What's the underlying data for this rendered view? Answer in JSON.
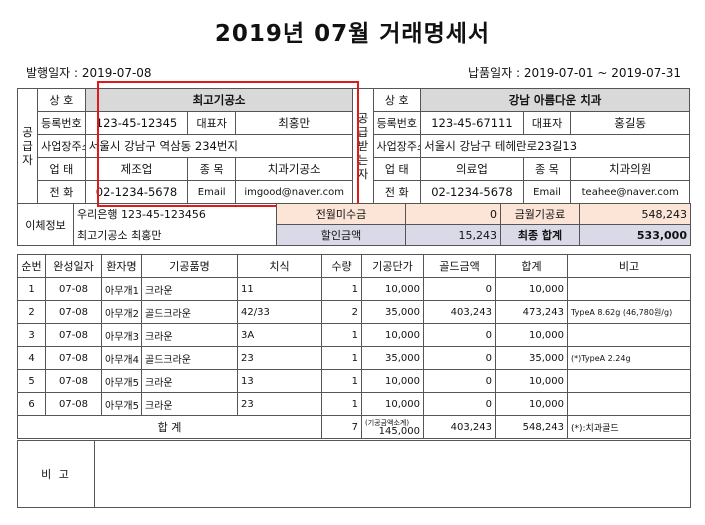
{
  "title": "2019년 07월  거래명세서",
  "issue_date": "발행일자 : 2019-07-08",
  "delivery_period": "납품일자 : 2019-07-01 ~  2019-07-31",
  "supplier": {
    "section_label": "공급자",
    "name_label": "상 호",
    "name": "최고기공소",
    "reg_label": "등록번호",
    "reg_no": "123-45-12345",
    "rep_label": "대표자",
    "rep": "최홍만",
    "addr_label": "사업장주소",
    "addr": "서울시 강남구 역삼동 234번지",
    "biz_type_label": "업 태",
    "biz_type": "제조업",
    "biz_item_label": "종 목",
    "biz_item": "치과기공소",
    "phone_label": "전 화",
    "phone": "02-1234-5678",
    "email_label": "Email",
    "email": "imgood@naver.com"
  },
  "receiver": {
    "section_label": "공급받는자",
    "name_label": "상 호",
    "name": "강남 아름다운 치과",
    "reg_label": "등록번호",
    "reg_no": "123-45-67111",
    "rep_label": "대표자",
    "rep": "홍길동",
    "addr_label": "사업장주소",
    "addr": "서울시 강남구 테헤란로23길13",
    "biz_type_label": "업 태",
    "biz_type": "의료업",
    "biz_item_label": "종 목",
    "biz_item": "치과의원",
    "phone_label": "전 화",
    "phone": "02-1234-5678",
    "email_label": "Email",
    "email": "teahee@naver.com"
  },
  "payment": {
    "label": "이체정보",
    "bank_account": "우리은행  123-45-123456",
    "holder": "최고기공소 최홍만"
  },
  "summary": {
    "prev_unpaid_label": "전월미수금",
    "prev_unpaid": "0",
    "month_supply_label": "금월기공료",
    "month_supply": "548,243",
    "discount_label": "할인금액",
    "discount": "15,243",
    "final_total_label": "최종 합계",
    "final_total": "533,000"
  },
  "items_header": [
    "순번",
    "완성일자",
    "환자명",
    "기공품명",
    "치식",
    "수량",
    "기공단가",
    "골드금액",
    "합계",
    "비고"
  ],
  "items": [
    {
      "no": "1",
      "date": "07-08",
      "patient": "아무개1",
      "product": "크라운",
      "tooth": "11",
      "qty": "1",
      "price": "10,000",
      "gold": "0",
      "total": "10,000",
      "note": ""
    },
    {
      "no": "2",
      "date": "07-08",
      "patient": "아무개2",
      "product": "골드크라운",
      "tooth": "42/33",
      "qty": "2",
      "price": "35,000",
      "gold": "403,243",
      "total": "473,243",
      "note": "TypeA 8.62g (46,780원/g)"
    },
    {
      "no": "3",
      "date": "07-08",
      "patient": "아무개3",
      "product": "크라운",
      "tooth": "3A",
      "qty": "1",
      "price": "10,000",
      "gold": "0",
      "total": "10,000",
      "note": ""
    },
    {
      "no": "4",
      "date": "07-08",
      "patient": "아무개4",
      "product": "골드크라운",
      "tooth": "23",
      "qty": "1",
      "price": "35,000",
      "gold": "0",
      "total": "35,000",
      "note": "(*)TypeA 2.24g"
    },
    {
      "no": "5",
      "date": "07-08",
      "patient": "아무개5",
      "product": "크라운",
      "tooth": "13",
      "qty": "1",
      "price": "10,000",
      "gold": "0",
      "total": "10,000",
      "note": ""
    },
    {
      "no": "6",
      "date": "07-08",
      "patient": "아무개5",
      "product": "크라운",
      "tooth": "23",
      "qty": "1",
      "price": "10,000",
      "gold": "0",
      "total": "10,000",
      "note": ""
    }
  ],
  "totals": {
    "label": "합 계",
    "qty": "7",
    "price_caption": "(기공금액소계)",
    "price": "145,000",
    "gold": "403,243",
    "total": "548,243",
    "note": "(*):치과골드"
  },
  "remarks": {
    "label": "비 고",
    "text": ""
  },
  "colors": {
    "highlight_border": "#e0191b",
    "header_gray": "#d9d9d9",
    "peach": "#fce4d6",
    "lavender": "#d9d9e8"
  }
}
